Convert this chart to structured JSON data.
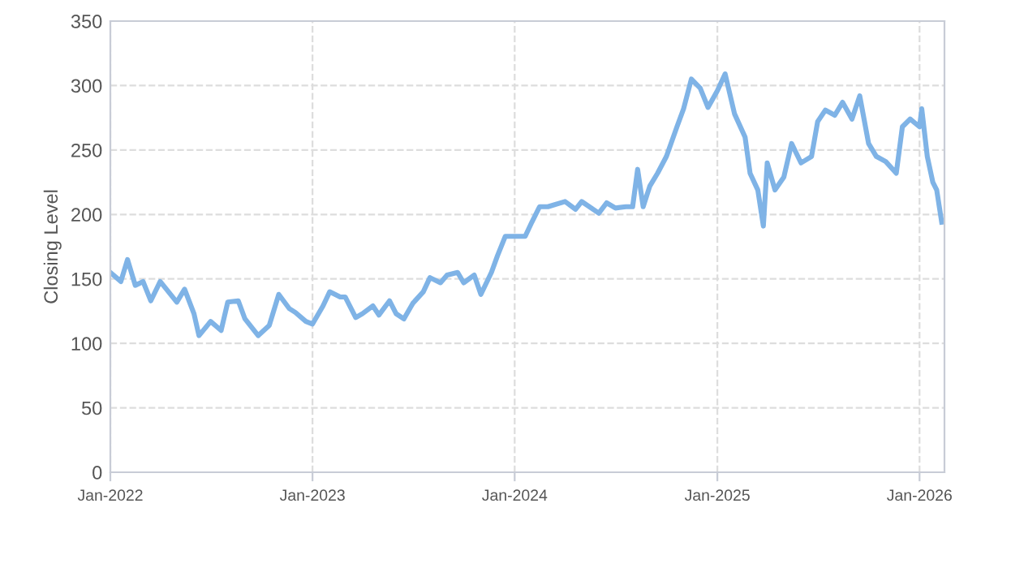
{
  "chart_data": {
    "type": "line",
    "ylabel": "Closing Level",
    "grid": true,
    "marker": "none",
    "line_style": "solid",
    "xlim": [
      "2022-01-01",
      "2026-02-15"
    ],
    "xticks": [
      {
        "value": "2022-01-01",
        "label": "Jan-2022"
      },
      {
        "value": "2023-01-01",
        "label": "Jan-2023"
      },
      {
        "value": "2024-01-01",
        "label": "Jan-2024"
      },
      {
        "value": "2025-01-01",
        "label": "Jan-2025"
      },
      {
        "value": "2026-01-01",
        "label": "Jan-2026"
      }
    ],
    "ylim": [
      0,
      350
    ],
    "yticks": [
      0,
      50,
      100,
      150,
      200,
      250,
      300,
      350
    ],
    "x": [
      "2022-01-01",
      "2022-01-20",
      "2022-02-01",
      "2022-02-15",
      "2022-03-01",
      "2022-03-15",
      "2022-04-01",
      "2022-05-01",
      "2022-05-15",
      "2022-06-01",
      "2022-06-10",
      "2022-07-01",
      "2022-07-20",
      "2022-08-01",
      "2022-08-20",
      "2022-09-01",
      "2022-09-25",
      "2022-10-15",
      "2022-11-01",
      "2022-11-20",
      "2022-12-01",
      "2022-12-20",
      "2023-01-01",
      "2023-01-20",
      "2023-02-01",
      "2023-02-20",
      "2023-03-01",
      "2023-03-20",
      "2023-04-01",
      "2023-04-20",
      "2023-05-01",
      "2023-05-20",
      "2023-06-01",
      "2023-06-15",
      "2023-07-01",
      "2023-07-20",
      "2023-08-01",
      "2023-08-20",
      "2023-09-01",
      "2023-09-20",
      "2023-10-01",
      "2023-10-20",
      "2023-11-01",
      "2023-11-20",
      "2023-12-01",
      "2023-12-15",
      "2024-01-01",
      "2024-01-20",
      "2024-02-01",
      "2024-02-15",
      "2024-03-01",
      "2024-04-01",
      "2024-04-20",
      "2024-05-01",
      "2024-06-01",
      "2024-06-15",
      "2024-07-01",
      "2024-07-20",
      "2024-08-01",
      "2024-08-10",
      "2024-08-20",
      "2024-09-01",
      "2024-09-15",
      "2024-10-01",
      "2024-10-20",
      "2024-11-01",
      "2024-11-15",
      "2024-12-01",
      "2024-12-15",
      "2025-01-01",
      "2025-01-15",
      "2025-02-01",
      "2025-02-20",
      "2025-03-01",
      "2025-03-15",
      "2025-03-25",
      "2025-04-01",
      "2025-04-15",
      "2025-05-01",
      "2025-05-15",
      "2025-06-01",
      "2025-06-20",
      "2025-07-01",
      "2025-07-15",
      "2025-08-01",
      "2025-08-15",
      "2025-09-01",
      "2025-09-15",
      "2025-10-01",
      "2025-10-15",
      "2025-11-01",
      "2025-11-20",
      "2025-12-01",
      "2025-12-15",
      "2026-01-01",
      "2026-01-05",
      "2026-01-15",
      "2026-01-25",
      "2026-02-01",
      "2026-02-10"
    ],
    "series": [
      {
        "color": "#7fb3e6",
        "values": [
          155,
          148,
          165,
          145,
          148,
          133,
          148,
          132,
          142,
          123,
          106,
          117,
          110,
          132,
          133,
          119,
          106,
          114,
          138,
          127,
          124,
          117,
          115,
          129,
          140,
          136,
          136,
          120,
          123,
          129,
          122,
          133,
          123,
          119,
          131,
          140,
          151,
          147,
          153,
          155,
          147,
          153,
          138,
          155,
          168,
          183,
          183,
          183,
          194,
          206,
          206,
          210,
          204,
          210,
          201,
          209,
          205,
          206,
          206,
          235,
          206,
          222,
          232,
          245,
          268,
          282,
          305,
          298,
          283,
          296,
          309,
          278,
          260,
          232,
          219,
          191,
          240,
          219,
          229,
          255,
          240,
          245,
          272,
          281,
          277,
          287,
          274,
          292,
          255,
          245,
          241,
          232,
          268,
          274,
          268,
          282,
          245,
          225,
          219,
          194
        ]
      }
    ]
  }
}
